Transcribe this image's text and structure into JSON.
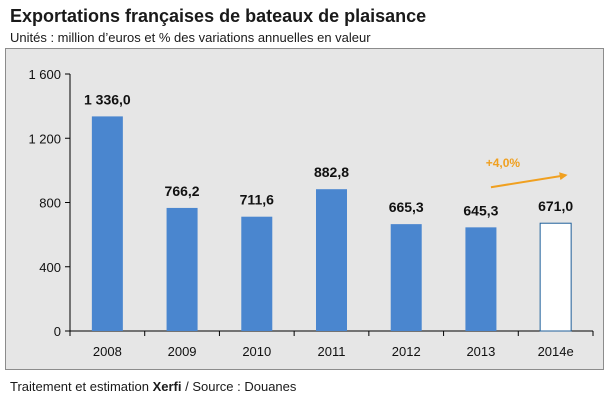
{
  "title": "Exportations françaises de bateaux de plaisance",
  "subtitle": "Unités : million d’euros et % des variations annuelles en valeur",
  "source": {
    "prefix": "Traitement et estimation ",
    "brand": "Xerfi",
    "suffix": " / Source : Douanes"
  },
  "colors": {
    "bar": "#4a86cf",
    "estimate_fill": "#ffffff",
    "estimate_border": "#1f5f9a",
    "arrow": "#f0a020",
    "background": "#e6e6e6"
  },
  "chart_data": {
    "type": "bar",
    "categories": [
      "2008",
      "2009",
      "2010",
      "2011",
      "2012",
      "2013",
      "2014e"
    ],
    "values": [
      1336.0,
      766.2,
      711.6,
      882.8,
      665.3,
      645.3,
      671.0
    ],
    "value_labels": [
      "1 336,0",
      "766,2",
      "711,6",
      "882,8",
      "665,3",
      "645,3",
      "671,0"
    ],
    "estimate_index": 6,
    "ylim": [
      0,
      1600
    ],
    "yticks": [
      0,
      400,
      800,
      1200,
      1600
    ],
    "ytick_labels": [
      "0",
      "400",
      "800",
      "1 200",
      "1 600"
    ],
    "annotation": {
      "text": "+4,0%",
      "from_index": 5,
      "to_index": 6
    },
    "grid": false,
    "legend": false
  }
}
